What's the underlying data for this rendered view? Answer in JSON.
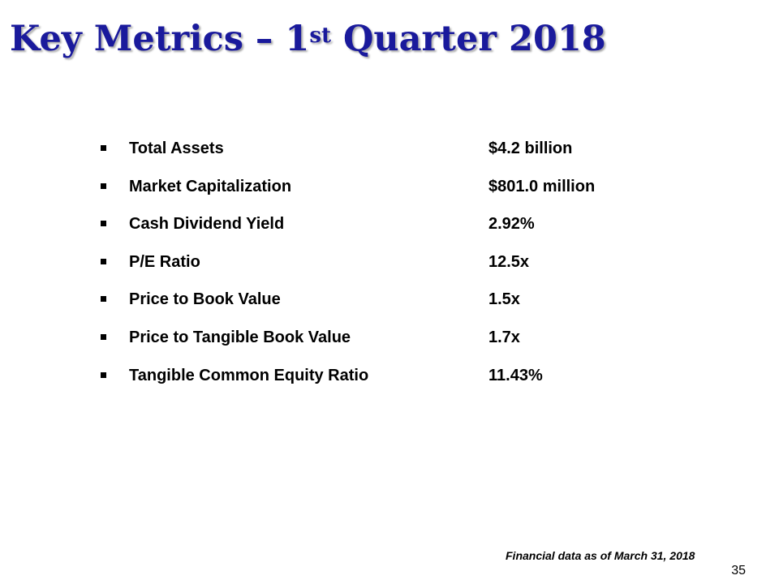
{
  "slide": {
    "title_main": "Key Metrics – 1",
    "title_sup": "st",
    "title_rest": " Quarter 2018",
    "metrics": [
      {
        "label": "Total Assets",
        "value": "$4.2 billion"
      },
      {
        "label": "Market Capitalization",
        "value": "$801.0 million"
      },
      {
        "label": "Cash Dividend Yield",
        "value": "2.92%"
      },
      {
        "label": "P/E Ratio",
        "value": "12.5x"
      },
      {
        "label": "Price to Book Value",
        "value": "1.5x"
      },
      {
        "label": "Price to Tangible Book Value",
        "value": "1.7x"
      },
      {
        "label": "Tangible Common Equity Ratio",
        "value": "11.43%"
      }
    ],
    "footnote": "Financial data as of March 31, 2018",
    "page_number": "35"
  },
  "colors": {
    "title": "#1a1a9c",
    "text": "#000000",
    "background": "#ffffff"
  }
}
